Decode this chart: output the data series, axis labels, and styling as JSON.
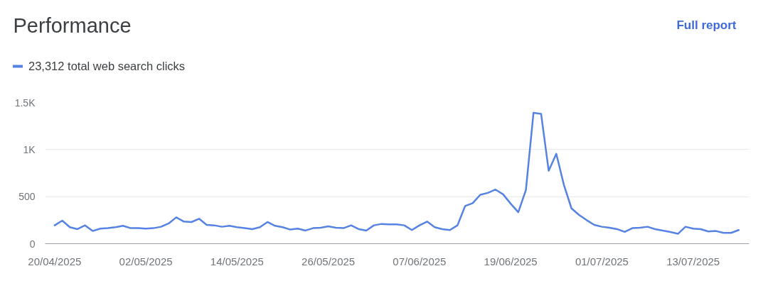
{
  "chart_data": {
    "type": "line",
    "title": "Performance",
    "annotations": [
      "Full report"
    ],
    "x": [
      "2025-04-20",
      "2025-04-21",
      "2025-04-22",
      "2025-04-23",
      "2025-04-24",
      "2025-04-25",
      "2025-04-26",
      "2025-04-27",
      "2025-04-28",
      "2025-04-29",
      "2025-04-30",
      "2025-05-01",
      "2025-05-02",
      "2025-05-03",
      "2025-05-04",
      "2025-05-05",
      "2025-05-06",
      "2025-05-07",
      "2025-05-08",
      "2025-05-09",
      "2025-05-10",
      "2025-05-11",
      "2025-05-12",
      "2025-05-13",
      "2025-05-14",
      "2025-05-15",
      "2025-05-16",
      "2025-05-17",
      "2025-05-18",
      "2025-05-19",
      "2025-05-20",
      "2025-05-21",
      "2025-05-22",
      "2025-05-23",
      "2025-05-24",
      "2025-05-25",
      "2025-05-26",
      "2025-05-27",
      "2025-05-28",
      "2025-05-29",
      "2025-05-30",
      "2025-05-31",
      "2025-06-01",
      "2025-06-02",
      "2025-06-03",
      "2025-06-04",
      "2025-06-05",
      "2025-06-06",
      "2025-06-07",
      "2025-06-08",
      "2025-06-09",
      "2025-06-10",
      "2025-06-11",
      "2025-06-12",
      "2025-06-13",
      "2025-06-14",
      "2025-06-15",
      "2025-06-16",
      "2025-06-17",
      "2025-06-18",
      "2025-06-19",
      "2025-06-20",
      "2025-06-21",
      "2025-06-22",
      "2025-06-23",
      "2025-06-24",
      "2025-06-25",
      "2025-06-26",
      "2025-06-27",
      "2025-06-28",
      "2025-06-29",
      "2025-06-30",
      "2025-07-01",
      "2025-07-02",
      "2025-07-03",
      "2025-07-04",
      "2025-07-05",
      "2025-07-06",
      "2025-07-07",
      "2025-07-08",
      "2025-07-09",
      "2025-07-10",
      "2025-07-11",
      "2025-07-12",
      "2025-07-13",
      "2025-07-14",
      "2025-07-15",
      "2025-07-16",
      "2025-07-17",
      "2025-07-18",
      "2025-07-19"
    ],
    "series": [
      {
        "name": "23,312 total web search clicks",
        "color": "#5683e3",
        "values": [
          195,
          245,
          175,
          155,
          195,
          135,
          160,
          165,
          175,
          190,
          165,
          165,
          160,
          165,
          180,
          215,
          280,
          235,
          230,
          265,
          200,
          195,
          180,
          190,
          175,
          165,
          155,
          175,
          230,
          190,
          175,
          150,
          160,
          140,
          165,
          170,
          185,
          170,
          165,
          195,
          155,
          140,
          195,
          210,
          205,
          205,
          195,
          145,
          195,
          235,
          175,
          155,
          145,
          195,
          400,
          430,
          520,
          540,
          575,
          525,
          425,
          335,
          570,
          1390,
          1380,
          775,
          955,
          625,
          375,
          305,
          250,
          200,
          180,
          170,
          155,
          125,
          165,
          170,
          180,
          155,
          140,
          125,
          105,
          180,
          160,
          155,
          130,
          135,
          115,
          115,
          145
        ]
      }
    ],
    "xlim": [
      "2025-04-18T18:00",
      "2025-07-20T09:00"
    ],
    "xticks": [
      {
        "value": "2025-04-20",
        "label": "20/04/2025"
      },
      {
        "value": "2025-05-02",
        "label": "02/05/2025"
      },
      {
        "value": "2025-05-14",
        "label": "14/05/2025"
      },
      {
        "value": "2025-05-26",
        "label": "26/05/2025"
      },
      {
        "value": "2025-06-07",
        "label": "07/06/2025"
      },
      {
        "value": "2025-06-19",
        "label": "19/06/2025"
      },
      {
        "value": "2025-07-01",
        "label": "01/07/2025"
      },
      {
        "value": "2025-07-13",
        "label": "13/07/2025"
      }
    ],
    "ylim": [
      0,
      1500
    ],
    "yticks": [
      0,
      500,
      {
        "value": 1000,
        "label": "1K"
      },
      {
        "value": 1500,
        "label": "1.5K"
      }
    ],
    "grid": "y",
    "legend": "top left",
    "line_style": "solid"
  }
}
